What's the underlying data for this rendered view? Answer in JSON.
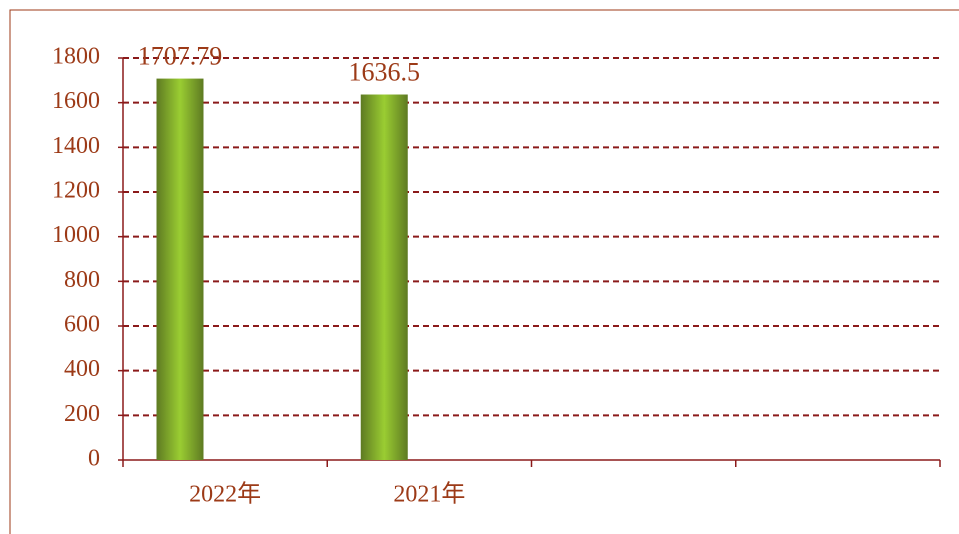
{
  "chart_data": {
    "type": "bar",
    "categories": [
      "2022年",
      "2021年",
      null,
      null
    ],
    "values": [
      1707.79,
      1636.5,
      null,
      null
    ],
    "color": "#9acd32",
    "ylim": [
      0,
      1800
    ],
    "yticks": [
      0,
      200,
      400,
      600,
      800,
      1000,
      1200,
      1400,
      1600,
      1800
    ],
    "grid": true
  }
}
